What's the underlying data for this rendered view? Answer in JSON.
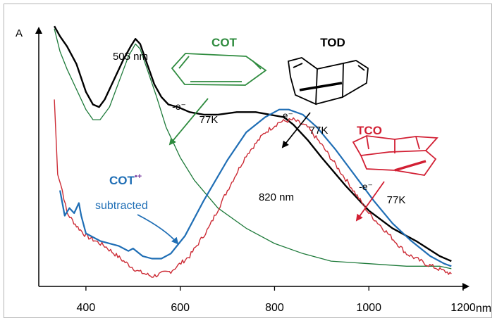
{
  "chart_data": {
    "type": "line",
    "ylabel": "A",
    "xlabel": "nm",
    "xlim": [
      300,
      1200
    ],
    "ylim": [
      0,
      1
    ],
    "x_ticks": [
      400,
      600,
      800,
      1000,
      1200
    ],
    "x_tick_labels": [
      "400",
      "600",
      "800",
      "1000",
      "1200"
    ],
    "grid": false,
    "legend": "none",
    "series": [
      {
        "key": "black",
        "color": "#000000",
        "points": [
          [
            333,
            1.03
          ],
          [
            345,
            0.99
          ],
          [
            360,
            0.95
          ],
          [
            380,
            0.88
          ],
          [
            400,
            0.77
          ],
          [
            415,
            0.72
          ],
          [
            428,
            0.71
          ],
          [
            440,
            0.74
          ],
          [
            460,
            0.82
          ],
          [
            480,
            0.9
          ],
          [
            495,
            0.95
          ],
          [
            505,
            0.98
          ],
          [
            515,
            0.96
          ],
          [
            530,
            0.88
          ],
          [
            545,
            0.8
          ],
          [
            560,
            0.75
          ],
          [
            575,
            0.72
          ],
          [
            595,
            0.71
          ],
          [
            620,
            0.69
          ],
          [
            650,
            0.68
          ],
          [
            680,
            0.68
          ],
          [
            720,
            0.69
          ],
          [
            760,
            0.69
          ],
          [
            790,
            0.68
          ],
          [
            820,
            0.67
          ],
          [
            840,
            0.64
          ],
          [
            870,
            0.58
          ],
          [
            900,
            0.51
          ],
          [
            950,
            0.4
          ],
          [
            1000,
            0.3
          ],
          [
            1050,
            0.23
          ],
          [
            1100,
            0.18
          ],
          [
            1150,
            0.12
          ],
          [
            1175,
            0.1
          ]
        ]
      },
      {
        "key": "green",
        "color": "#1e7a3a",
        "points": [
          [
            333,
            1.02
          ],
          [
            345,
            0.93
          ],
          [
            360,
            0.86
          ],
          [
            380,
            0.78
          ],
          [
            400,
            0.7
          ],
          [
            415,
            0.66
          ],
          [
            430,
            0.66
          ],
          [
            450,
            0.71
          ],
          [
            470,
            0.81
          ],
          [
            490,
            0.91
          ],
          [
            505,
            0.96
          ],
          [
            515,
            0.94
          ],
          [
            530,
            0.86
          ],
          [
            550,
            0.75
          ],
          [
            570,
            0.63
          ],
          [
            600,
            0.51
          ],
          [
            630,
            0.42
          ],
          [
            680,
            0.31
          ],
          [
            740,
            0.23
          ],
          [
            800,
            0.17
          ],
          [
            860,
            0.13
          ],
          [
            920,
            0.1
          ],
          [
            1000,
            0.09
          ],
          [
            1080,
            0.08
          ],
          [
            1150,
            0.08
          ],
          [
            1175,
            0.07
          ]
        ]
      },
      {
        "key": "red",
        "color": "#cc2b35",
        "noisy": true,
        "points": [
          [
            333,
            0.74
          ],
          [
            340,
            0.45
          ],
          [
            350,
            0.38
          ],
          [
            360,
            0.29
          ],
          [
            380,
            0.24
          ],
          [
            400,
            0.2
          ],
          [
            440,
            0.16
          ],
          [
            480,
            0.1
          ],
          [
            510,
            0.06
          ],
          [
            540,
            0.04
          ],
          [
            580,
            0.06
          ],
          [
            620,
            0.12
          ],
          [
            660,
            0.23
          ],
          [
            700,
            0.38
          ],
          [
            740,
            0.52
          ],
          [
            780,
            0.61
          ],
          [
            810,
            0.65
          ],
          [
            840,
            0.66
          ],
          [
            870,
            0.63
          ],
          [
            900,
            0.56
          ],
          [
            930,
            0.48
          ],
          [
            960,
            0.4
          ],
          [
            1000,
            0.29
          ],
          [
            1040,
            0.21
          ],
          [
            1080,
            0.13
          ],
          [
            1120,
            0.09
          ],
          [
            1160,
            0.06
          ],
          [
            1175,
            0.05
          ]
        ]
      },
      {
        "key": "blue",
        "color": "#1f6eb5",
        "points": [
          [
            345,
            0.38
          ],
          [
            355,
            0.28
          ],
          [
            365,
            0.31
          ],
          [
            375,
            0.29
          ],
          [
            385,
            0.33
          ],
          [
            390,
            0.28
          ],
          [
            400,
            0.21
          ],
          [
            430,
            0.18
          ],
          [
            470,
            0.16
          ],
          [
            490,
            0.14
          ],
          [
            500,
            0.15
          ],
          [
            520,
            0.12
          ],
          [
            540,
            0.11
          ],
          [
            560,
            0.11
          ],
          [
            580,
            0.13
          ],
          [
            610,
            0.2
          ],
          [
            650,
            0.34
          ],
          [
            700,
            0.5
          ],
          [
            740,
            0.61
          ],
          [
            780,
            0.67
          ],
          [
            810,
            0.7
          ],
          [
            830,
            0.7
          ],
          [
            860,
            0.68
          ],
          [
            890,
            0.63
          ],
          [
            930,
            0.54
          ],
          [
            970,
            0.44
          ],
          [
            1010,
            0.34
          ],
          [
            1050,
            0.25
          ],
          [
            1090,
            0.18
          ],
          [
            1130,
            0.12
          ],
          [
            1160,
            0.09
          ],
          [
            1175,
            0.08
          ]
        ]
      }
    ],
    "annotations": {
      "peak_505": "505 nm",
      "peak_820": "820 nm",
      "cot_label": "COT",
      "tod_label": "TOD",
      "tco_label": "TCO",
      "ion_label": "COT",
      "ion_superscript": "•+",
      "subtracted": "subtracted",
      "minus_e_1": "-e⁻",
      "minus_e_2": "-e⁻",
      "minus_e_3": "-e⁻",
      "temp_1": "77K",
      "temp_2": "77K",
      "temp_3": "77K"
    },
    "colors": {
      "cot": "#2e8b3e",
      "tod": "#000000",
      "tco": "#d21f33",
      "ion": "#1f6eb5"
    }
  }
}
